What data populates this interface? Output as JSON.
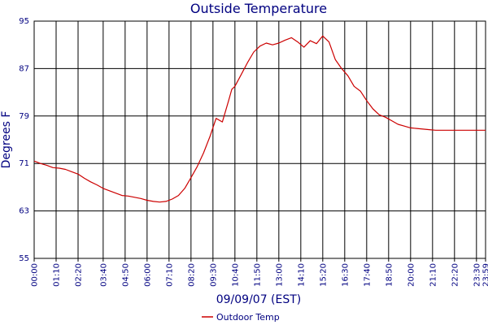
{
  "chart_data": {
    "type": "line",
    "title": "Outside Temperature",
    "xlabel": "09/09/07 (EST)",
    "ylabel": "Degrees F",
    "ylim": [
      55,
      95
    ],
    "yticks": [
      55,
      63,
      71,
      79,
      87,
      95
    ],
    "xlim": [
      0,
      1439
    ],
    "xticks": [
      {
        "minute": 0,
        "label": "00:00"
      },
      {
        "minute": 70,
        "label": "01:10"
      },
      {
        "minute": 140,
        "label": "02:20"
      },
      {
        "minute": 220,
        "label": "03:40"
      },
      {
        "minute": 290,
        "label": "04:50"
      },
      {
        "minute": 360,
        "label": "06:00"
      },
      {
        "minute": 430,
        "label": "07:10"
      },
      {
        "minute": 500,
        "label": "08:20"
      },
      {
        "minute": 570,
        "label": "09:30"
      },
      {
        "minute": 640,
        "label": "10:40"
      },
      {
        "minute": 710,
        "label": "11:50"
      },
      {
        "minute": 780,
        "label": "13:00"
      },
      {
        "minute": 850,
        "label": "14:10"
      },
      {
        "minute": 920,
        "label": "15:20"
      },
      {
        "minute": 990,
        "label": "16:30"
      },
      {
        "minute": 1060,
        "label": "17:40"
      },
      {
        "minute": 1130,
        "label": "18:50"
      },
      {
        "minute": 1200,
        "label": "20:00"
      },
      {
        "minute": 1270,
        "label": "21:10"
      },
      {
        "minute": 1340,
        "label": "22:20"
      },
      {
        "minute": 1410,
        "label": "23:30"
      },
      {
        "minute": 1439,
        "label": "23:59"
      }
    ],
    "grid": true,
    "legend_position": "bottom",
    "series": [
      {
        "name": "Outdoor Temp",
        "color": "#cc0000",
        "x": [
          0,
          10,
          20,
          40,
          60,
          80,
          100,
          120,
          140,
          160,
          180,
          200,
          220,
          240,
          260,
          280,
          300,
          320,
          340,
          360,
          380,
          400,
          420,
          440,
          460,
          480,
          500,
          520,
          540,
          560,
          580,
          600,
          620,
          630,
          640,
          660,
          680,
          700,
          720,
          740,
          760,
          780,
          800,
          820,
          840,
          860,
          880,
          900,
          920,
          940,
          960,
          980,
          1000,
          1020,
          1040,
          1060,
          1080,
          1100,
          1120,
          1140,
          1160,
          1180,
          1200,
          1220,
          1240,
          1260,
          1280,
          1300,
          1320,
          1340,
          1360,
          1380,
          1400,
          1420,
          1439
        ],
        "y": [
          71.4,
          71.2,
          71.0,
          70.7,
          70.3,
          70.2,
          70.0,
          69.6,
          69.2,
          68.5,
          67.9,
          67.4,
          66.8,
          66.4,
          66.0,
          65.6,
          65.5,
          65.3,
          65.1,
          64.8,
          64.6,
          64.5,
          64.6,
          65.0,
          65.6,
          66.8,
          68.6,
          70.5,
          72.8,
          75.5,
          78.6,
          78.0,
          81.6,
          83.5,
          84.0,
          86.0,
          88.0,
          89.8,
          90.8,
          91.3,
          91.0,
          91.3,
          91.8,
          92.2,
          91.5,
          90.6,
          91.7,
          91.2,
          92.5,
          91.5,
          88.5,
          87.0,
          85.8,
          84.0,
          83.2,
          81.6,
          80.2,
          79.2,
          78.8,
          78.2,
          77.6,
          77.3,
          77.0,
          76.9,
          76.8,
          76.7,
          76.6,
          76.6,
          76.6,
          76.6,
          76.6,
          76.6,
          76.6,
          76.6,
          76.6
        ]
      }
    ]
  }
}
